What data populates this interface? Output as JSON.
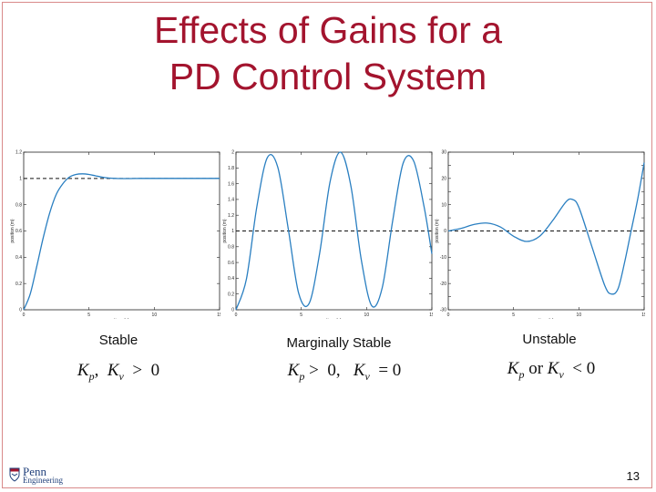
{
  "slide": {
    "title_line1": "Effects of Gains for a",
    "title_line2": "PD Control System",
    "page_number": "13",
    "logo": {
      "name": "Penn",
      "sub": "Engineering"
    }
  },
  "panels": [
    {
      "caption": "Stable",
      "math": {
        "a": "K",
        "a_sub": "p",
        "sep": ",  ",
        "b": "K",
        "b_sub": "v",
        "rest": "  >  0",
        "mid": ""
      }
    },
    {
      "caption": "Marginally Stable",
      "math": {
        "a": "K",
        "a_sub": "p",
        "sep": " >  0,   ",
        "b": "K",
        "b_sub": "v",
        "rest": "  = 0",
        "mid": ""
      }
    },
    {
      "caption": "Unstable",
      "math": {
        "a": "K",
        "a_sub": "p",
        "sep": " or ",
        "b": "K",
        "b_sub": "v",
        "rest": "  < 0",
        "mid": ""
      }
    }
  ],
  "chart_data": [
    {
      "type": "line",
      "xlabel": "time (s)",
      "ylabel": "position (m)",
      "xlim": [
        0,
        15
      ],
      "ylim": [
        0,
        1.2
      ],
      "xticks": [
        0,
        5,
        10,
        15
      ],
      "xtick_labels": [
        "0",
        "5",
        "10",
        "15"
      ],
      "yticks": [
        0,
        0.2,
        0.4,
        0.6,
        0.8,
        1,
        1.2
      ],
      "ytick_labels": [
        "0",
        "0.2",
        "0.4",
        "0.6",
        "0.8",
        "1",
        "1.2"
      ],
      "reference": 1,
      "series": [
        {
          "x": [
            0,
            0.5,
            1,
            1.5,
            2,
            2.5,
            3,
            3.5,
            4,
            4.5,
            5,
            5.5,
            6,
            6.5,
            7,
            8,
            9,
            10,
            11,
            12,
            13,
            14,
            15
          ],
          "y": [
            0,
            0.12,
            0.33,
            0.55,
            0.74,
            0.88,
            0.96,
            1.01,
            1.03,
            1.035,
            1.03,
            1.02,
            1.01,
            1.003,
            1.0,
            0.999,
            1.0,
            1.0,
            1.0,
            1.0,
            1.0,
            1.0,
            1.0
          ]
        }
      ],
      "color": "#2a7fc1"
    },
    {
      "type": "line",
      "xlabel": "time (s)",
      "ylabel": "position (m)",
      "xlim": [
        0,
        15
      ],
      "ylim": [
        0,
        2
      ],
      "xticks": [
        0,
        5,
        10,
        15
      ],
      "xtick_labels": [
        "0",
        "5",
        "10",
        "15"
      ],
      "yticks": [
        0,
        0.2,
        0.4,
        0.6,
        0.8,
        1,
        1.2,
        1.4,
        1.6,
        1.8,
        2
      ],
      "ytick_labels": [
        "0",
        "0.2",
        "0.4",
        "0.6",
        "0.8",
        "1",
        "1.2",
        "1.4",
        "1.6",
        "1.8",
        "2"
      ],
      "reference": 1,
      "series": [
        {
          "x": [
            0,
            0.8,
            1.6,
            2.4,
            3.2,
            4.0,
            4.8,
            5.6,
            6.4,
            7.2,
            8.0,
            8.8,
            9.6,
            10.4,
            11.2,
            12.0,
            12.8,
            13.6,
            14.4,
            15.0
          ],
          "y": [
            0,
            0.39,
            1.31,
            1.93,
            1.81,
            1.03,
            0.21,
            0.08,
            0.71,
            1.62,
            2.0,
            1.57,
            0.63,
            0.05,
            0.28,
            1.13,
            1.86,
            1.89,
            1.31,
            0.71
          ]
        }
      ],
      "color": "#2a7fc1"
    },
    {
      "type": "line",
      "xlabel": "time (s)",
      "ylabel": "position (m)",
      "xlim": [
        0,
        15
      ],
      "ylim": [
        -30,
        30
      ],
      "xticks": [
        0,
        5,
        10,
        15
      ],
      "xtick_labels": [
        "0",
        "5",
        "10",
        "15"
      ],
      "yticks": [
        -30,
        -25,
        -20,
        -15,
        -10,
        -5,
        0,
        5,
        10,
        15,
        20,
        25,
        30
      ],
      "ytick_labels": [
        "-30",
        "",
        "-20",
        "",
        "-10",
        "",
        "0",
        "",
        "10",
        "",
        "20",
        "",
        "30"
      ],
      "reference": 0,
      "series": [
        {
          "x": [
            0,
            1,
            2,
            3,
            4,
            5,
            6,
            7,
            8,
            9,
            9.5,
            10,
            11,
            12,
            12.5,
            13,
            13.5,
            14,
            14.5,
            15
          ],
          "y": [
            0,
            1,
            2.5,
            3,
            1.5,
            -2,
            -4,
            -2,
            4,
            11,
            12,
            9,
            -6,
            -21,
            -24,
            -22,
            -12,
            0,
            12,
            26
          ]
        }
      ],
      "color": "#2a7fc1"
    }
  ]
}
